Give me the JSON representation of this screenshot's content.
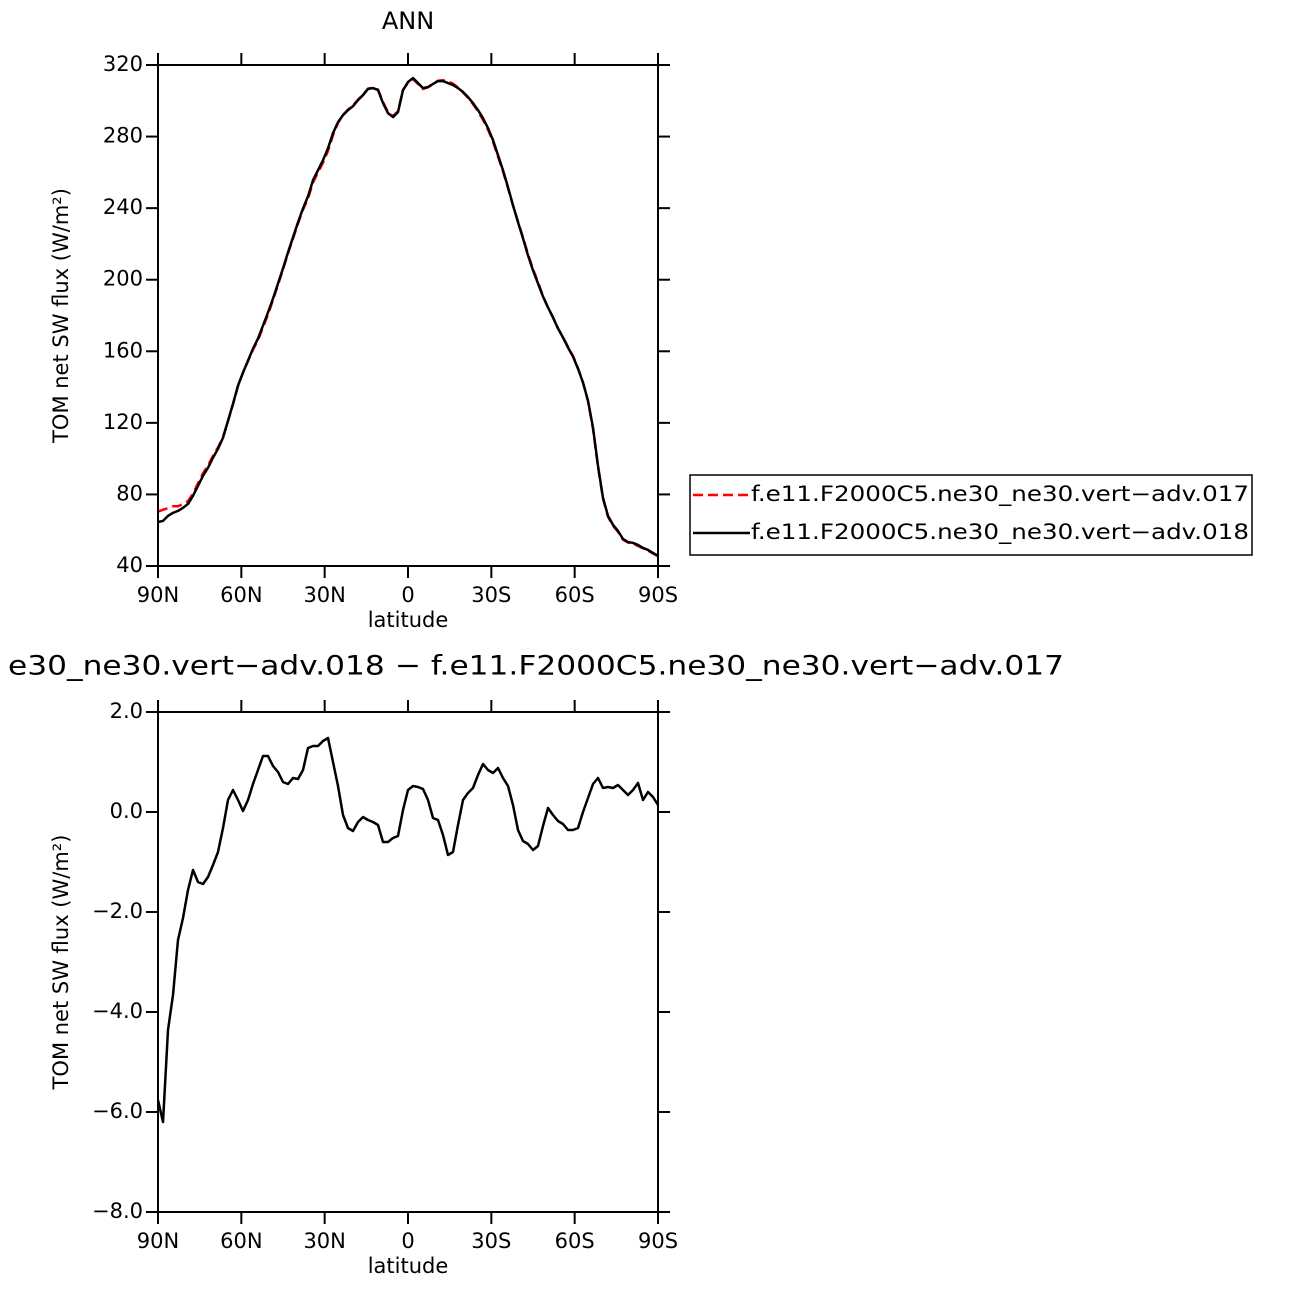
{
  "chart_data": [
    {
      "type": "line",
      "title": "ANN",
      "xlabel": "latitude",
      "ylabel": "TOM net SW flux (W/m²)",
      "x": [
        90,
        88.2,
        86.4,
        84.6,
        82.8,
        81,
        79.2,
        77.4,
        75.6,
        73.8,
        72,
        70.2,
        68.4,
        66.6,
        64.8,
        63,
        61.2,
        59.4,
        57.6,
        55.8,
        54,
        52.2,
        50.4,
        48.6,
        46.8,
        45,
        43.2,
        41.4,
        39.6,
        37.8,
        36,
        34.2,
        32.4,
        30.6,
        28.8,
        27,
        25.2,
        23.4,
        21.6,
        19.8,
        18,
        16.2,
        14.4,
        12.6,
        10.8,
        9,
        7.2,
        5.4,
        3.6,
        1.8,
        0,
        -1.8,
        -3.6,
        -5.4,
        -7.2,
        -9,
        -10.8,
        -12.6,
        -14.4,
        -16.2,
        -18,
        -19.8,
        -21.6,
        -23.4,
        -25.2,
        -27,
        -28.8,
        -30.6,
        -32.4,
        -34.2,
        -36,
        -37.8,
        -39.6,
        -41.4,
        -43.2,
        -45,
        -46.8,
        -48.6,
        -50.4,
        -52.2,
        -54,
        -55.8,
        -57.6,
        -59.4,
        -61.2,
        -63,
        -64.8,
        -66.6,
        -68.4,
        -70.2,
        -72,
        -73.8,
        -75.6,
        -77.4,
        -79.2,
        -81,
        -82.8,
        -84.6,
        -86.4,
        -88.2,
        -90
      ],
      "series": [
        {
          "name": "f.e11.F2000C5.ne30_ne30.vert−adv.017",
          "color": "#ff0000",
          "dashed": true,
          "values": [
            70.4,
            71.4,
            72.4,
            73.4,
            73.4,
            74.6,
            76.3,
            80.4,
            86.2,
            91.8,
            96.2,
            101.6,
            106.3,
            112.0,
            121.0,
            130.3,
            140.6,
            148.1,
            154.6,
            160.9,
            166.3,
            173.3,
            180.6,
            188.6,
            197.1,
            205.7,
            214.7,
            223.0,
            231.4,
            239.1,
            245.3,
            254.3,
            259.9,
            265.4,
            272.0,
            280.9,
            287.6,
            292.1,
            295.1,
            297.4,
            300.6,
            303.3,
            306.8,
            307.3,
            306.3,
            299.3,
            293.7,
            291.4,
            294.2,
            306.0,
            310.1,
            312.2,
            309.4,
            306.6,
            307.5,
            309.5,
            311.2,
            311.5,
            310.8,
            309.6,
            307.4,
            304.7,
            301.7,
            298.2,
            294.1,
            289.3,
            283.9,
            277.2,
            268.7,
            260.5,
            251.2,
            241.5,
            232.5,
            223.7,
            214.2,
            206.0,
            198.6,
            190.9,
            184.4,
            179.0,
            172.9,
            167.9,
            162.5,
            157.4,
            150.6,
            142.5,
            132.1,
            116.7,
            95.3,
            77.6,
            67.5,
            62.5,
            59.1,
            54.7,
            53.1,
            52.5,
            51.2,
            49.9,
            48.6,
            47.0,
            45.5
          ]
        },
        {
          "name": "f.e11.F2000C5.ne30_ne30.vert−adv.018",
          "color": "#000000",
          "dashed": false,
          "values": [
            64.6,
            65.2,
            68.0,
            69.7,
            70.8,
            72.5,
            74.7,
            79.2,
            84.8,
            90.4,
            94.9,
            100.5,
            105.5,
            111.7,
            121.2,
            130.7,
            140.8,
            148.1,
            154.8,
            161.5,
            167.1,
            174.4,
            181.7,
            189.5,
            197.9,
            206.3,
            215.3,
            223.7,
            232.1,
            239.9,
            246.6,
            255.6,
            261.2,
            266.8,
            273.5,
            281.9,
            288.1,
            292.0,
            294.8,
            297.0,
            300.4,
            303.2,
            306.6,
            307.1,
            306.0,
            298.7,
            293.1,
            290.9,
            293.7,
            306.0,
            310.5,
            312.7,
            309.9,
            307.1,
            307.7,
            309.4,
            311.0,
            311.0,
            309.9,
            308.8,
            307.1,
            304.9,
            302.1,
            298.7,
            294.8,
            290.3,
            284.7,
            278.0,
            269.6,
            261.2,
            251.7,
            241.6,
            232.1,
            223.1,
            213.6,
            205.2,
            197.9,
            190.6,
            184.5,
            178.9,
            172.7,
            167.7,
            162.1,
            157.0,
            150.3,
            142.5,
            132.4,
            117.3,
            96.0,
            78.1,
            68.0,
            63.0,
            59.6,
            55.1,
            53.4,
            52.9,
            51.8,
            50.1,
            49.0,
            47.3,
            45.6
          ]
        }
      ],
      "xlim": [
        90,
        -90
      ],
      "xticks": [
        {
          "value": 90,
          "label": "90N"
        },
        {
          "value": 60,
          "label": "60N"
        },
        {
          "value": 30,
          "label": "30N"
        },
        0,
        {
          "value": -30,
          "label": "30S"
        },
        {
          "value": -60,
          "label": "60S"
        },
        {
          "value": -90,
          "label": "90S"
        }
      ],
      "ylim": [
        40,
        320
      ],
      "yticks": [
        40,
        80,
        120,
        160,
        200,
        240,
        280,
        320
      ],
      "legend": "right"
    },
    {
      "type": "line",
      "title": "e30_ne30.vert−adv.018 − f.e11.F2000C5.ne30_ne30.vert−adv.017",
      "xlabel": "latitude",
      "ylabel": "TOM net SW flux (W/m²)",
      "x": [
        90,
        88.2,
        86.4,
        84.6,
        82.8,
        81,
        79.2,
        77.4,
        75.6,
        73.8,
        72,
        70.2,
        68.4,
        66.6,
        64.8,
        63,
        61.2,
        59.4,
        57.6,
        55.8,
        54,
        52.2,
        50.4,
        48.6,
        46.8,
        45,
        43.2,
        41.4,
        39.6,
        37.8,
        36,
        34.2,
        32.4,
        30.6,
        28.8,
        27,
        25.2,
        23.4,
        21.6,
        19.8,
        18,
        16.2,
        14.4,
        12.6,
        10.8,
        9,
        7.2,
        5.4,
        3.6,
        1.8,
        0,
        -1.8,
        -3.6,
        -5.4,
        -7.2,
        -9,
        -10.8,
        -12.6,
        -14.4,
        -16.2,
        -18,
        -19.8,
        -21.6,
        -23.4,
        -25.2,
        -27,
        -28.8,
        -30.6,
        -32.4,
        -34.2,
        -36,
        -37.8,
        -39.6,
        -41.4,
        -43.2,
        -45,
        -46.8,
        -48.6,
        -50.4,
        -52.2,
        -54,
        -55.8,
        -57.6,
        -59.4,
        -61.2,
        -63,
        -64.8,
        -66.6,
        -68.4,
        -70.2,
        -72,
        -73.8,
        -75.6,
        -77.4,
        -79.2,
        -81,
        -82.8,
        -84.6,
        -86.4,
        -88.2,
        -90
      ],
      "series": [
        {
          "color": "#000000",
          "dashed": false,
          "values": [
            -5.76,
            -6.2,
            -4.36,
            -3.66,
            -2.56,
            -2.12,
            -1.56,
            -1.16,
            -1.4,
            -1.44,
            -1.3,
            -1.06,
            -0.8,
            -0.32,
            0.24,
            0.44,
            0.24,
            0.02,
            0.24,
            0.56,
            0.84,
            1.12,
            1.12,
            0.92,
            0.8,
            0.6,
            0.56,
            0.68,
            0.66,
            0.84,
            1.28,
            1.32,
            1.32,
            1.42,
            1.48,
            1.0,
            0.52,
            -0.06,
            -0.32,
            -0.38,
            -0.2,
            -0.1,
            -0.16,
            -0.2,
            -0.26,
            -0.6,
            -0.6,
            -0.52,
            -0.48,
            0.04,
            0.44,
            0.52,
            0.5,
            0.46,
            0.24,
            -0.12,
            -0.16,
            -0.46,
            -0.86,
            -0.8,
            -0.26,
            0.24,
            0.38,
            0.48,
            0.74,
            0.96,
            0.84,
            0.78,
            0.88,
            0.68,
            0.52,
            0.14,
            -0.36,
            -0.58,
            -0.64,
            -0.76,
            -0.68,
            -0.28,
            0.08,
            -0.06,
            -0.18,
            -0.24,
            -0.36,
            -0.36,
            -0.32,
            0.0,
            0.28,
            0.56,
            0.68,
            0.48,
            0.5,
            0.48,
            0.54,
            0.44,
            0.34,
            0.44,
            0.58,
            0.24,
            0.4,
            0.3,
            0.14
          ]
        }
      ],
      "xlim": [
        90,
        -90
      ],
      "xticks": [
        {
          "value": 90,
          "label": "90N"
        },
        {
          "value": 60,
          "label": "60N"
        },
        {
          "value": 30,
          "label": "30N"
        },
        0,
        {
          "value": -30,
          "label": "30S"
        },
        {
          "value": -60,
          "label": "60S"
        },
        {
          "value": -90,
          "label": "90S"
        }
      ],
      "ylim": [
        -8,
        2
      ],
      "yticks": [
        {
          "value": -8,
          "label": "−8.0"
        },
        {
          "value": -6,
          "label": "−6.0"
        },
        {
          "value": -4,
          "label": "−4.0"
        },
        {
          "value": -2,
          "label": "−2.0"
        },
        {
          "value": 0,
          "label": "0.0"
        },
        {
          "value": 2,
          "label": "2.0"
        }
      ]
    }
  ]
}
